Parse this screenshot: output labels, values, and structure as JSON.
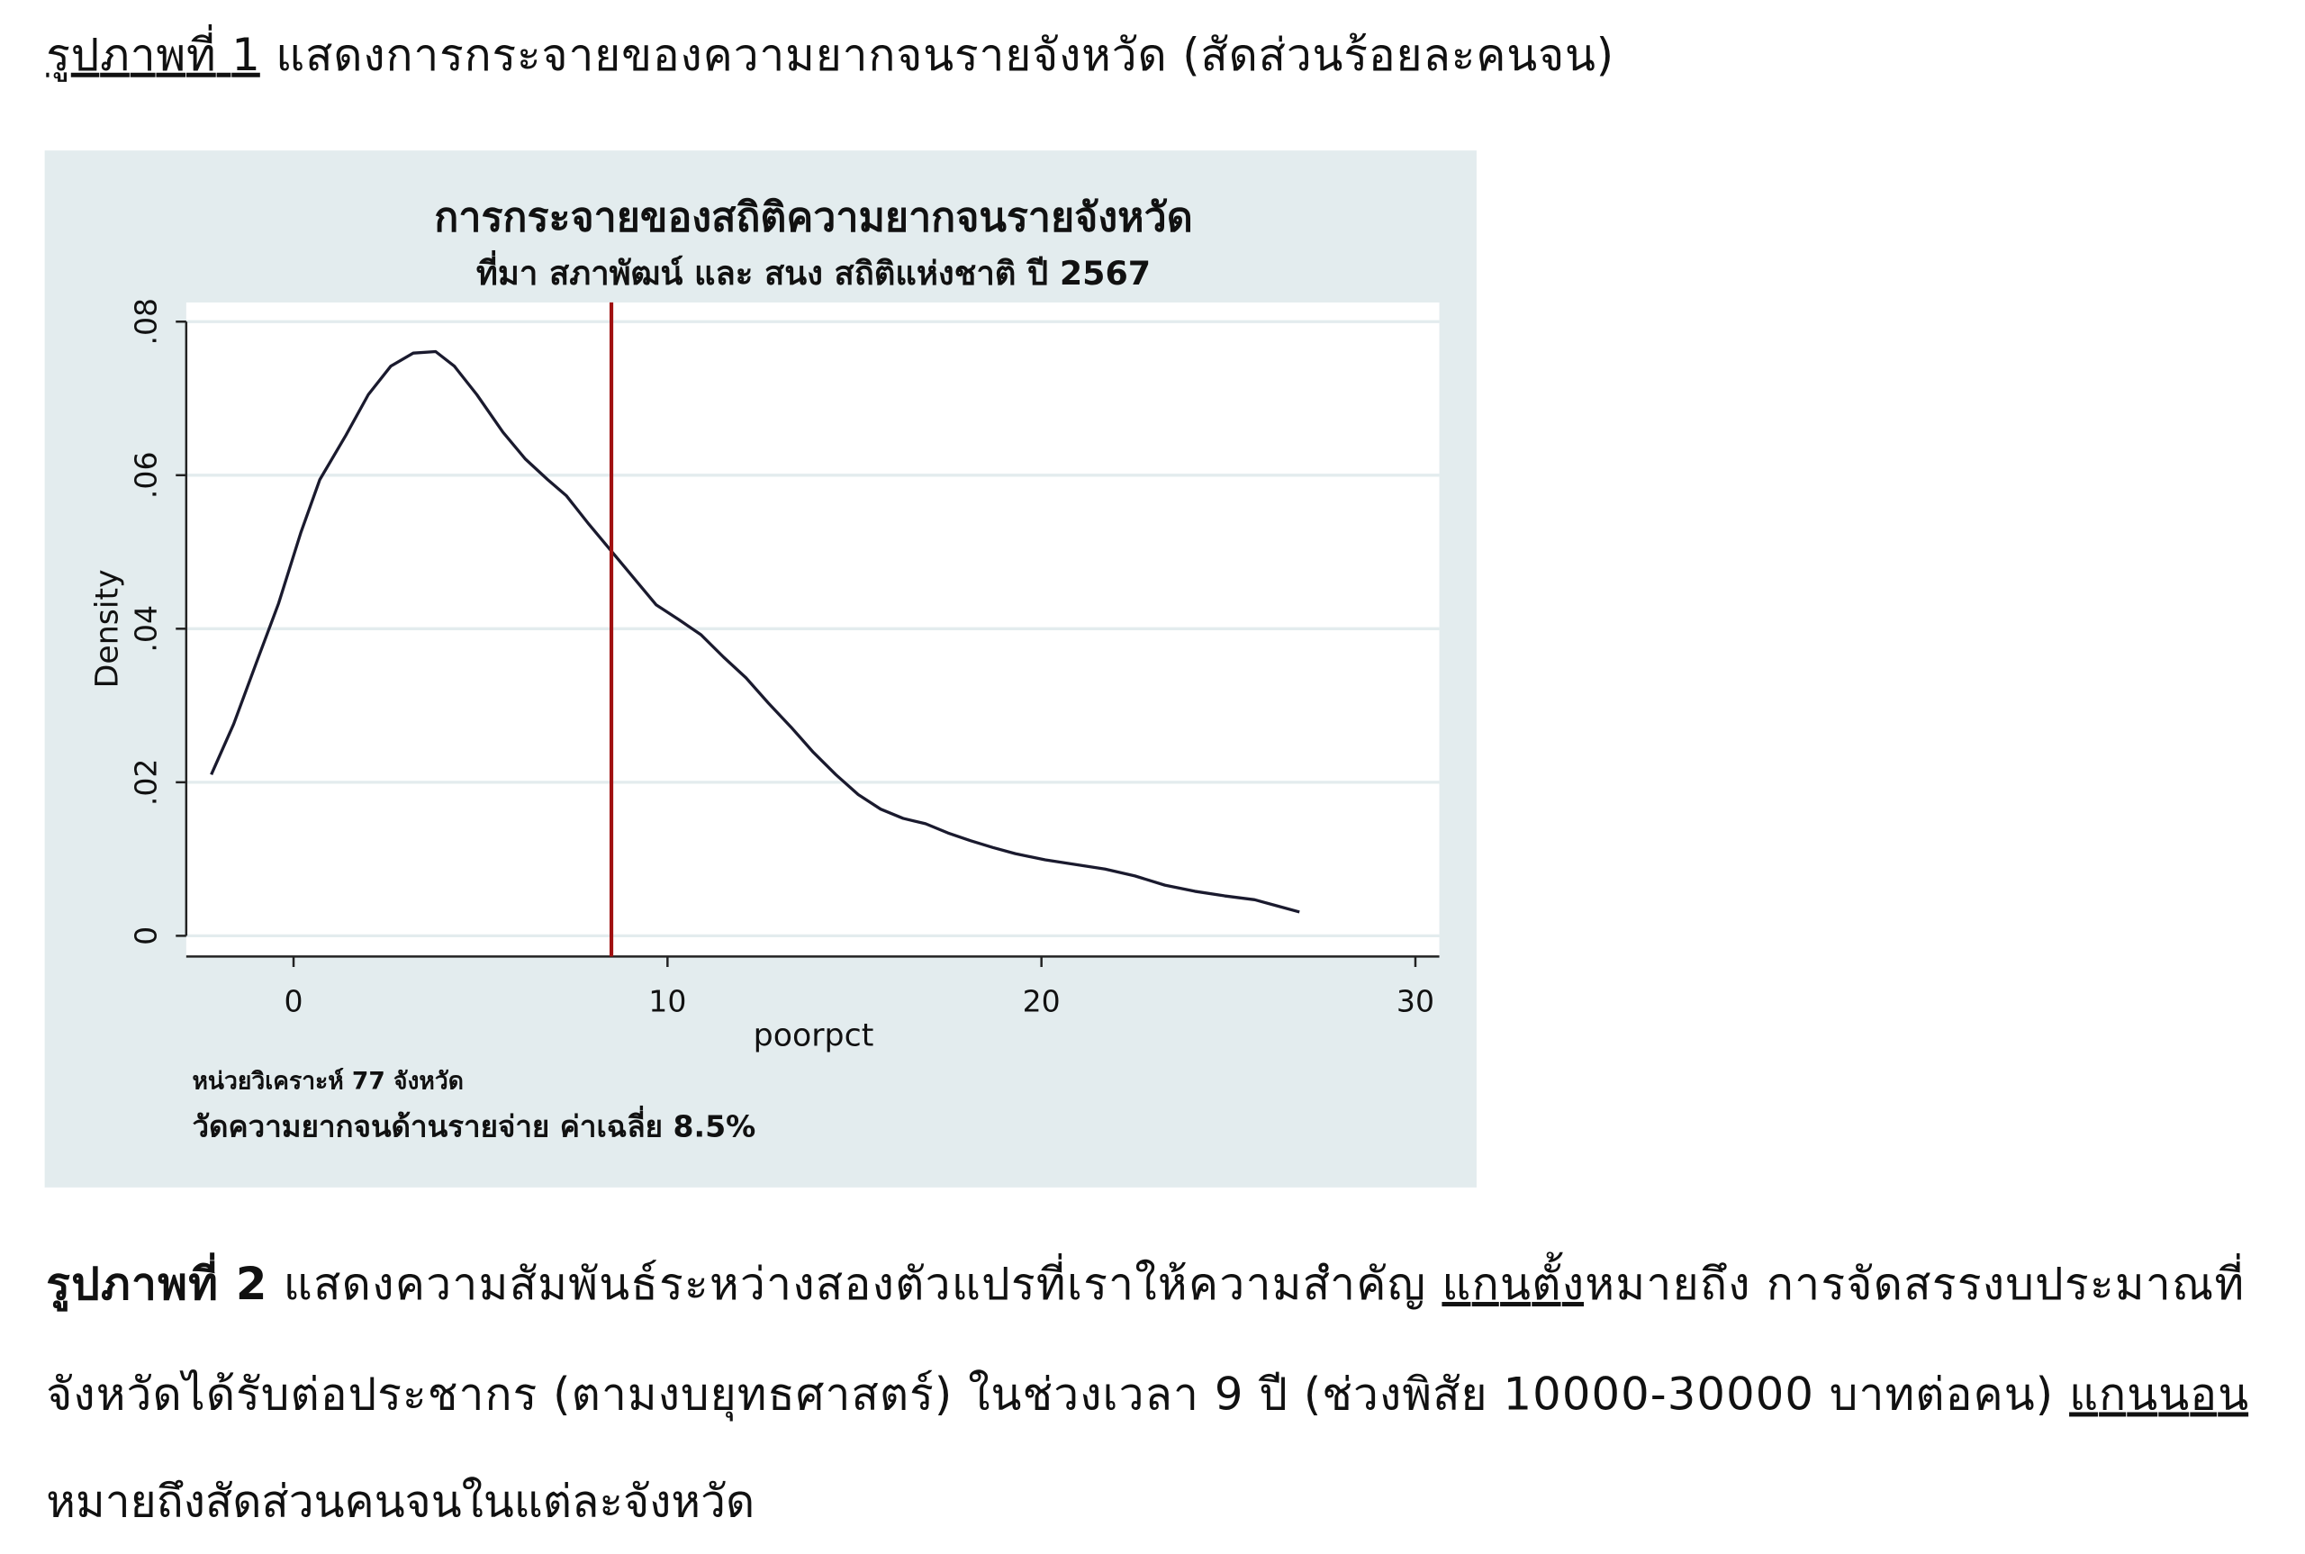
{
  "figure1_caption": {
    "label": "รูปภาพที่ 1",
    "text": "แสดงการกระจายของความยากจนรายจังหวัด (สัดส่วนร้อยละคนจน)"
  },
  "chart_data": {
    "type": "line",
    "title": "การกระจายของสถิติความยากจนรายจังหวัด",
    "subtitle": "ที่มา สภาพัฒน์ และ สนง สถิติแห่งชาติ ปี 2567",
    "x_label": "poorpct",
    "y_label": "Density",
    "x": [
      -2.2,
      -1.6,
      -1.0,
      -0.4,
      0.2,
      0.7,
      1.4,
      2.0,
      2.6,
      3.2,
      3.8,
      4.3,
      4.9,
      5.6,
      6.2,
      6.8,
      7.3,
      7.9,
      8.5,
      9.1,
      9.7,
      10.3,
      10.9,
      11.5,
      12.1,
      12.7,
      13.3,
      13.9,
      14.5,
      15.1,
      15.7,
      16.3,
      16.9,
      17.5,
      18.1,
      18.7,
      19.3,
      20.1,
      20.9,
      21.7,
      22.5,
      23.3,
      24.1,
      24.9,
      25.7,
      26.3,
      26.9
    ],
    "values": [
      0.021,
      0.0276,
      0.0355,
      0.0433,
      0.0526,
      0.0594,
      0.0652,
      0.0705,
      0.0742,
      0.0759,
      0.0761,
      0.0742,
      0.0705,
      0.0656,
      0.0621,
      0.0594,
      0.0573,
      0.0536,
      0.0501,
      0.0466,
      0.0431,
      0.0412,
      0.0392,
      0.0363,
      0.0336,
      0.0303,
      0.0272,
      0.0239,
      0.021,
      0.0184,
      0.0165,
      0.0153,
      0.0146,
      0.0134,
      0.0124,
      0.0115,
      0.0107,
      0.0099,
      0.0093,
      0.0087,
      0.0078,
      0.0066,
      0.0058,
      0.0052,
      0.0047,
      0.0039,
      0.0031
    ],
    "color": "#1a1a2e",
    "mean_line": 8.5,
    "mean_line_color": "#a01010",
    "xlim": [
      -2.87,
      30.64
    ],
    "ylim": [
      -0.0027,
      0.0825
    ],
    "xticks": [
      0,
      10,
      20,
      30
    ],
    "yticks": [
      0,
      {
        "value": 0.02,
        "label": ".02"
      },
      {
        "value": 0.04,
        "label": ".04"
      },
      {
        "value": 0.06,
        "label": ".06"
      },
      {
        "value": 0.08,
        "label": ".08"
      }
    ],
    "grid": true,
    "notes": [
      "หน่วยวิเคราะห์ 77 จังหวัด",
      "วัดความยากจนด้านรายจ่าย  ค่าเฉลี่ย 8.5%"
    ]
  },
  "figure2_paragraph": {
    "label": "รูปภาพที่ 2",
    "lines": [
      [
        "แสดงความสัมพันธ์ระหว่างสองตัวแปรที่เราให้ความสำคัญ ",
        "แกนตั้ง",
        "หมายถึง การจัดสรรงบประมาณที่"
      ],
      [
        "จังหวัดได้รับต่อประชากร (ตามงบยุทธศาสตร์) ในช่วงเวลา 9 ปี (ช่วงพิสัย 10000-30000 บาทต่อคน) ",
        "แกนนอน"
      ],
      [
        "หมายถึงสัดส่วนคนจนในแต่ละจังหวัด"
      ]
    ]
  }
}
